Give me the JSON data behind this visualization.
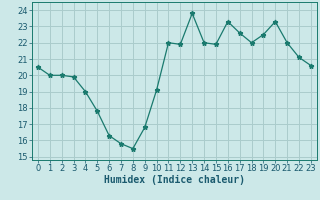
{
  "x": [
    0,
    1,
    2,
    3,
    4,
    5,
    6,
    7,
    8,
    9,
    10,
    11,
    12,
    13,
    14,
    15,
    16,
    17,
    18,
    19,
    20,
    21,
    22,
    23
  ],
  "y": [
    20.5,
    20.0,
    20.0,
    19.9,
    19.0,
    17.8,
    16.3,
    15.8,
    15.5,
    16.8,
    19.1,
    22.0,
    21.9,
    23.8,
    22.0,
    21.9,
    23.3,
    22.6,
    22.0,
    22.5,
    23.3,
    22.0,
    21.1,
    20.6
  ],
  "xlabel": "Humidex (Indice chaleur)",
  "xlim": [
    -0.5,
    23.5
  ],
  "ylim": [
    14.8,
    24.5
  ],
  "yticks": [
    15,
    16,
    17,
    18,
    19,
    20,
    21,
    22,
    23,
    24
  ],
  "xticks": [
    0,
    1,
    2,
    3,
    4,
    5,
    6,
    7,
    8,
    9,
    10,
    11,
    12,
    13,
    14,
    15,
    16,
    17,
    18,
    19,
    20,
    21,
    22,
    23
  ],
  "line_color": "#1a7a6e",
  "marker": "*",
  "marker_size": 3.5,
  "bg_color": "#cce8e8",
  "grid_color": "#aacccc",
  "xlabel_fontsize": 7,
  "tick_fontsize": 6
}
